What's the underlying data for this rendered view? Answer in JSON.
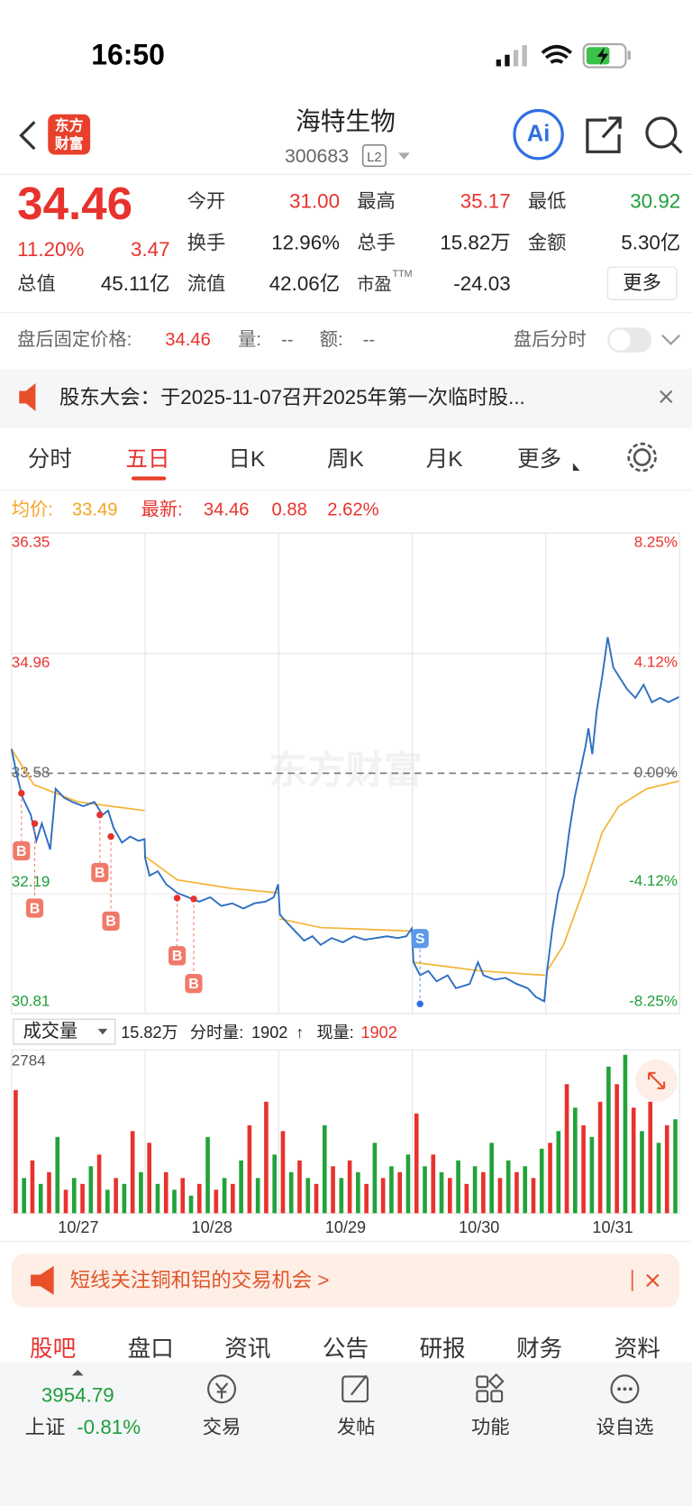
{
  "status": {
    "time": "16:50"
  },
  "header": {
    "logo": [
      "东方",
      "财富"
    ],
    "title": "海特生物",
    "code": "300683",
    "badge": "L2",
    "ai": "Ai"
  },
  "quote": {
    "price": "34.46",
    "pct": "11.20%",
    "change": "3.47",
    "fields": [
      {
        "label": "今开",
        "value": "31.00"
      },
      {
        "label": "最高",
        "value": "35.17"
      },
      {
        "label": "最低",
        "value": "30.92"
      },
      {
        "label": "换手",
        "value": "12.96%"
      },
      {
        "label": "总手",
        "value": "15.82万"
      },
      {
        "label": "金额",
        "value": "5.30亿"
      },
      {
        "label": "总值",
        "value": "45.11亿"
      },
      {
        "label": "流值",
        "value": "42.06亿"
      },
      {
        "label": "市盈",
        "sup": "TTM",
        "value": "-24.03"
      }
    ],
    "more": "更多"
  },
  "after_hours": {
    "label": "盘后固定价格:",
    "price": "34.46",
    "volume_label": "量:",
    "volume": "--",
    "amount_label": "额:",
    "amount": "--",
    "toggle": "盘后分时"
  },
  "notice": "股东大会：于2025-11-07召开2025年第一次临时股...",
  "tabs": [
    "分时",
    "五日",
    "日K",
    "周K",
    "月K",
    "更多"
  ],
  "active_tab": 1,
  "legend": {
    "avg_label": "均价:",
    "avg": "33.49",
    "last_label": "最新:",
    "last": "34.46",
    "change": "0.88",
    "pct": "2.62%"
  },
  "chart": {
    "type": "line",
    "watermark": "东方财富",
    "xlim": [
      0,
      1210
    ],
    "days": [
      "10/27",
      "10/28",
      "10/29",
      "10/30",
      "10/31"
    ],
    "ylim": [
      30.81,
      36.35
    ],
    "yticks": [
      30.81,
      32.19,
      33.58,
      34.96,
      36.35
    ],
    "y2lim": [
      -8.25,
      8.25
    ],
    "y2ticks": [
      {
        "value": -8.25,
        "label": "-8.25%"
      },
      {
        "value": -4.12,
        "label": "-4.12%"
      },
      {
        "value": 0,
        "label": "0.00%"
      },
      {
        "value": 4.12,
        "label": "4.12%"
      },
      {
        "value": 8.25,
        "label": "8.25%"
      }
    ],
    "grid": true,
    "price": {
      "color": "#2f6fc2",
      "x": [
        0,
        10,
        20,
        35,
        45,
        55,
        70,
        80,
        95,
        110,
        130,
        150,
        165,
        175,
        185,
        200,
        215,
        230,
        241,
        242,
        250,
        265,
        280,
        300,
        320,
        340,
        360,
        380,
        400,
        420,
        440,
        460,
        475,
        483,
        486,
        500,
        515,
        530,
        545,
        560,
        580,
        600,
        620,
        640,
        660,
        680,
        700,
        715,
        725,
        728,
        740,
        755,
        770,
        790,
        805,
        830,
        845,
        855,
        875,
        895,
        915,
        935,
        950,
        965,
        970,
        980,
        990,
        1000,
        1010,
        1020,
        1030,
        1040,
        1045,
        1052,
        1060,
        1070,
        1080,
        1090,
        1100,
        1115,
        1130,
        1145,
        1160,
        1175,
        1190,
        1209
      ],
      "values": [
        33.86,
        33.55,
        33.3,
        33.1,
        32.8,
        33.0,
        32.7,
        33.4,
        33.3,
        33.25,
        33.2,
        33.25,
        33.1,
        33.15,
        32.95,
        32.78,
        32.85,
        32.8,
        32.82,
        32.6,
        32.4,
        32.45,
        32.3,
        32.2,
        32.15,
        32.1,
        32.15,
        32.05,
        32.08,
        32.02,
        32.08,
        32.1,
        32.15,
        32.3,
        31.95,
        31.85,
        31.75,
        31.65,
        31.7,
        31.6,
        31.68,
        31.63,
        31.7,
        31.66,
        31.68,
        31.7,
        31.68,
        31.7,
        31.79,
        31.4,
        31.25,
        31.3,
        31.18,
        31.25,
        31.1,
        31.15,
        31.4,
        31.25,
        31.2,
        31.22,
        31.15,
        31.1,
        31.0,
        30.95,
        31.3,
        31.8,
        32.2,
        32.4,
        32.9,
        33.3,
        33.6,
        33.9,
        34.1,
        33.8,
        34.3,
        34.7,
        35.15,
        34.8,
        34.7,
        34.55,
        34.45,
        34.6,
        34.4,
        34.45,
        34.4,
        34.46
      ]
    },
    "avg": {
      "color": "#f5b335",
      "x": [
        0,
        40,
        120,
        241,
        241.5,
        242,
        300,
        400,
        483,
        484.5,
        486,
        560,
        725,
        726.5,
        728,
        850,
        967,
        968,
        970,
        1000,
        1040,
        1070,
        1100,
        1150,
        1209
      ],
      "values": [
        33.86,
        33.45,
        33.25,
        33.15,
        null,
        32.62,
        32.35,
        32.25,
        32.2,
        null,
        31.9,
        31.8,
        31.76,
        null,
        31.4,
        31.3,
        31.25,
        null,
        31.3,
        31.6,
        32.3,
        32.9,
        33.2,
        33.4,
        33.49
      ]
    },
    "trades": [
      {
        "label": "B",
        "x": 18,
        "price": 33.35
      },
      {
        "label": "B",
        "x": 42,
        "price": 33.0
      },
      {
        "label": "B",
        "x": 160,
        "price": 33.1
      },
      {
        "label": "B",
        "x": 180,
        "price": 32.85
      },
      {
        "label": "B",
        "x": 300,
        "price": 32.14
      },
      {
        "label": "B",
        "x": 330,
        "price": 32.13
      },
      {
        "label": "S",
        "x": 740,
        "price": 30.92
      }
    ],
    "volume": {
      "ylim": [
        0,
        2784
      ],
      "yticks": [
        2784
      ],
      "colors": [
        "#e8322d",
        "#22a33a"
      ],
      "values": [
        2100,
        600,
        900,
        500,
        700,
        1300,
        400,
        600,
        500,
        800,
        1000,
        400,
        600,
        500,
        1400,
        700,
        1200,
        500,
        700,
        400,
        600,
        300,
        500,
        1300,
        400,
        600,
        500,
        900,
        1500,
        600,
        1900,
        1000,
        1400,
        700,
        900,
        600,
        500,
        1500,
        800,
        600,
        900,
        700,
        500,
        1200,
        600,
        800,
        700,
        1000,
        1700,
        800,
        1000,
        700,
        600,
        900,
        500,
        800,
        700,
        1200,
        600,
        900,
        700,
        800,
        600,
        1100,
        1200,
        1400,
        2200,
        1800,
        1500,
        1300,
        1900,
        2500,
        2200,
        2700,
        1800,
        1400,
        1900,
        1200,
        1500,
        1600
      ]
    }
  },
  "volume_header": {
    "selector": "成交量",
    "total": "15.82万",
    "tick_label": "分时量:",
    "tick": "1902",
    "arrow": "↑",
    "now_label": "现量:",
    "now": "1902"
  },
  "ad": "短线关注铜和铝的交易机会 >",
  "bottom_tabs": [
    "股吧",
    "盘口",
    "资讯",
    "公告",
    "研报",
    "财务",
    "资料"
  ],
  "active_bottom_tab": 0,
  "nav": {
    "index_value": "3954.79",
    "index_name": "上证",
    "index_change": "-0.81%",
    "items": [
      "交易",
      "发帖",
      "功能",
      "设自选"
    ]
  }
}
